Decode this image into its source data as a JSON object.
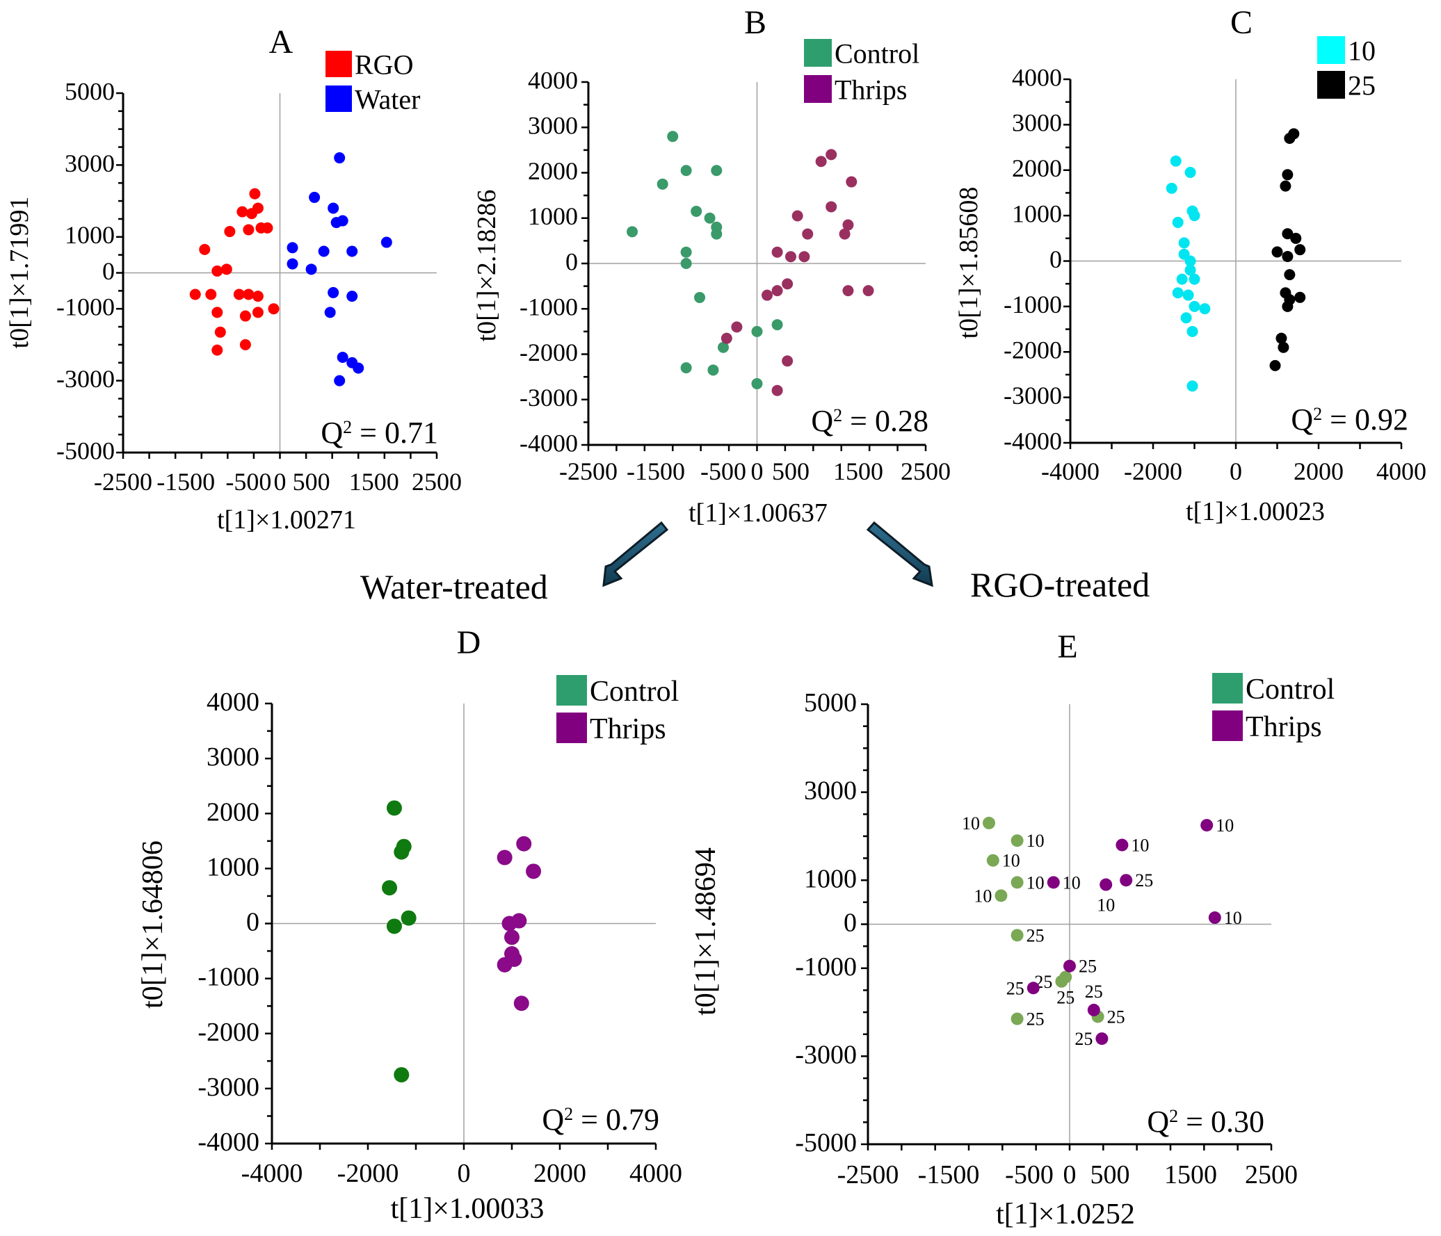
{
  "section_labels": {
    "water": "Water-treated",
    "rgo": "RGO-treated"
  },
  "chart_data": [
    {
      "id": "A",
      "type": "scatter",
      "title": "A",
      "xlabel": "t[1]×1.00271",
      "ylabel": "t0[1]×1.71991",
      "xlim": [
        -2500,
        2500
      ],
      "ylim": [
        -5000,
        5000
      ],
      "xticks": [
        -2500,
        -1500,
        -500,
        0,
        500,
        1500,
        2500
      ],
      "yticks": [
        -5000,
        -3000,
        -1000,
        0,
        1000,
        3000,
        5000
      ],
      "q2": "Q² = 0.71",
      "legend": [
        {
          "name": "RGO",
          "color": "#ff0000"
        },
        {
          "name": "Water",
          "color": "#0000ff"
        }
      ],
      "series": [
        {
          "name": "RGO",
          "color": "#ff0000",
          "points": [
            [
              -400,
              2200
            ],
            [
              -600,
              1700
            ],
            [
              -350,
              1800
            ],
            [
              -450,
              1650
            ],
            [
              -300,
              1250
            ],
            [
              -200,
              1250
            ],
            [
              -800,
              1150
            ],
            [
              -500,
              1200
            ],
            [
              -1200,
              650
            ],
            [
              -1000,
              50
            ],
            [
              -850,
              100
            ],
            [
              -1350,
              -600
            ],
            [
              -1100,
              -600
            ],
            [
              -650,
              -600
            ],
            [
              -500,
              -600
            ],
            [
              -350,
              -650
            ],
            [
              -1000,
              -1100
            ],
            [
              -550,
              -1200
            ],
            [
              -350,
              -1100
            ],
            [
              -100,
              -1000
            ],
            [
              -950,
              -1650
            ],
            [
              -550,
              -2000
            ],
            [
              -1000,
              -2150
            ]
          ]
        },
        {
          "name": "Water",
          "color": "#0000ff",
          "points": [
            [
              950,
              3200
            ],
            [
              550,
              2100
            ],
            [
              850,
              1800
            ],
            [
              900,
              1400
            ],
            [
              1000,
              1450
            ],
            [
              1700,
              850
            ],
            [
              200,
              700
            ],
            [
              700,
              600
            ],
            [
              1150,
              600
            ],
            [
              200,
              250
            ],
            [
              500,
              100
            ],
            [
              850,
              -550
            ],
            [
              1150,
              -650
            ],
            [
              800,
              -1100
            ],
            [
              1000,
              -2350
            ],
            [
              1150,
              -2500
            ],
            [
              1250,
              -2650
            ],
            [
              950,
              -3000
            ]
          ]
        }
      ]
    },
    {
      "id": "B",
      "type": "scatter",
      "title": "B",
      "xlabel": "t[1]×1.00637",
      "ylabel": "t0[1]×2.18286",
      "xlim": [
        -2500,
        2500
      ],
      "ylim": [
        -4000,
        4000
      ],
      "xticks": [
        -2500,
        -1500,
        -500,
        0,
        500,
        1500,
        2500
      ],
      "yticks": [
        -4000,
        -3000,
        -2000,
        -1000,
        0,
        1000,
        2000,
        3000,
        4000
      ],
      "q2": "Q² = 0.28",
      "legend": [
        {
          "name": "Control",
          "color": "#2e9e6e"
        },
        {
          "name": "Thrips",
          "color": "#800080"
        }
      ],
      "series": [
        {
          "name": "Control",
          "color": "#3a9a6a",
          "points": [
            [
              -1250,
              2800
            ],
            [
              -1050,
              2050
            ],
            [
              -600,
              2050
            ],
            [
              -1400,
              1750
            ],
            [
              -900,
              1150
            ],
            [
              -700,
              1000
            ],
            [
              -600,
              800
            ],
            [
              -600,
              650
            ],
            [
              -1850,
              700
            ],
            [
              -1050,
              250
            ],
            [
              -1050,
              0
            ],
            [
              -850,
              -750
            ],
            [
              -500,
              -1850
            ],
            [
              0,
              -1500
            ],
            [
              300,
              -1350
            ],
            [
              -1050,
              -2300
            ],
            [
              -650,
              -2350
            ],
            [
              0,
              -2650
            ]
          ]
        },
        {
          "name": "Thrips",
          "color": "#9a3060",
          "points": [
            [
              1100,
              2400
            ],
            [
              950,
              2250
            ],
            [
              1400,
              1800
            ],
            [
              1100,
              1250
            ],
            [
              600,
              1050
            ],
            [
              750,
              650
            ],
            [
              1350,
              850
            ],
            [
              1300,
              650
            ],
            [
              300,
              250
            ],
            [
              500,
              150
            ],
            [
              700,
              150
            ],
            [
              450,
              -450
            ],
            [
              300,
              -600
            ],
            [
              150,
              -700
            ],
            [
              1350,
              -600
            ],
            [
              1650,
              -600
            ],
            [
              -300,
              -1400
            ],
            [
              -450,
              -1650
            ],
            [
              450,
              -2150
            ],
            [
              300,
              -2800
            ]
          ]
        }
      ]
    },
    {
      "id": "C",
      "type": "scatter",
      "title": "C",
      "xlabel": "t[1]×1.00023",
      "ylabel": "t0[1]×1.85608",
      "xlim": [
        -4000,
        4000
      ],
      "ylim": [
        -4000,
        4000
      ],
      "xticks": [
        -4000,
        -2000,
        0,
        2000,
        4000
      ],
      "yticks": [
        -4000,
        -3000,
        -2000,
        -1000,
        0,
        1000,
        2000,
        3000,
        4000
      ],
      "q2": "Q² = 0.92",
      "legend": [
        {
          "name": "10",
          "color": "#00ffff"
        },
        {
          "name": "25",
          "color": "#000000"
        }
      ],
      "series": [
        {
          "name": "10",
          "color": "#00e5f0",
          "points": [
            [
              -1450,
              2200
            ],
            [
              -1100,
              1950
            ],
            [
              -1550,
              1600
            ],
            [
              -1050,
              1100
            ],
            [
              -1000,
              1000
            ],
            [
              -1400,
              850
            ],
            [
              -1250,
              400
            ],
            [
              -1250,
              150
            ],
            [
              -1100,
              0
            ],
            [
              -1100,
              -200
            ],
            [
              -1300,
              -400
            ],
            [
              -1000,
              -400
            ],
            [
              -1400,
              -700
            ],
            [
              -1150,
              -750
            ],
            [
              -1000,
              -1000
            ],
            [
              -750,
              -1050
            ],
            [
              -1200,
              -1250
            ],
            [
              -1050,
              -1550
            ],
            [
              -1050,
              -2750
            ]
          ]
        },
        {
          "name": "25",
          "color": "#000000",
          "points": [
            [
              1400,
              2800
            ],
            [
              1300,
              2700
            ],
            [
              1250,
              1900
            ],
            [
              1200,
              1650
            ],
            [
              1250,
              600
            ],
            [
              1450,
              500
            ],
            [
              1000,
              200
            ],
            [
              1550,
              250
            ],
            [
              1250,
              100
            ],
            [
              1300,
              -300
            ],
            [
              1200,
              -700
            ],
            [
              1550,
              -800
            ],
            [
              1300,
              -850
            ],
            [
              1250,
              -1000
            ],
            [
              1100,
              -1700
            ],
            [
              1150,
              -1900
            ],
            [
              950,
              -2300
            ]
          ]
        }
      ]
    },
    {
      "id": "D",
      "type": "scatter",
      "title": "D",
      "xlabel": "t[1]×1.00033",
      "ylabel": "t0[1]×1.64806",
      "xlim": [
        -4000,
        4000
      ],
      "ylim": [
        -4000,
        4000
      ],
      "xticks": [
        -4000,
        -2000,
        0,
        2000,
        4000
      ],
      "yticks": [
        -4000,
        -3000,
        -2000,
        -1000,
        0,
        1000,
        2000,
        3000,
        4000
      ],
      "q2": "Q² = 0.79",
      "legend": [
        {
          "name": "Control",
          "color": "#2e9e6e"
        },
        {
          "name": "Thrips",
          "color": "#800080"
        }
      ],
      "series": [
        {
          "name": "Control",
          "color": "#0f7a0f",
          "points": [
            [
              -1450,
              2100
            ],
            [
              -1250,
              1400
            ],
            [
              -1300,
              1300
            ],
            [
              -1550,
              650
            ],
            [
              -1150,
              100
            ],
            [
              -1450,
              -50
            ],
            [
              -1300,
              -2750
            ]
          ]
        },
        {
          "name": "Thrips",
          "color": "#8a0a8a",
          "points": [
            [
              1250,
              1450
            ],
            [
              850,
              1200
            ],
            [
              1450,
              950
            ],
            [
              950,
              0
            ],
            [
              1150,
              50
            ],
            [
              1000,
              -250
            ],
            [
              1000,
              -550
            ],
            [
              1050,
              -650
            ],
            [
              850,
              -750
            ],
            [
              1200,
              -1450
            ]
          ]
        }
      ]
    },
    {
      "id": "E",
      "type": "scatter",
      "title": "E",
      "xlabel": "t[1]×1.0252",
      "ylabel": "t0[1]×1.48694",
      "xlim": [
        -2500,
        2500
      ],
      "ylim": [
        -5000,
        5000
      ],
      "xticks": [
        -2500,
        -1500,
        -500,
        0,
        500,
        1500,
        2500
      ],
      "yticks": [
        -5000,
        -3000,
        -1000,
        0,
        1000,
        3000,
        5000
      ],
      "q2": "Q² = 0.30",
      "legend": [
        {
          "name": "Control",
          "color": "#2e9e6e"
        },
        {
          "name": "Thrips",
          "color": "#800080"
        }
      ],
      "series": [
        {
          "name": "Control",
          "color": "#7aa855",
          "points": [
            {
              "x": -1000,
              "y": 2300,
              "label": "10",
              "side": "left"
            },
            {
              "x": -650,
              "y": 1900,
              "label": "10",
              "side": "right"
            },
            {
              "x": -950,
              "y": 1450,
              "label": "10",
              "side": "right"
            },
            {
              "x": -650,
              "y": 950,
              "label": "10",
              "side": "right"
            },
            {
              "x": -850,
              "y": 650,
              "label": "10",
              "side": "left"
            },
            {
              "x": -650,
              "y": -250,
              "label": "25",
              "side": "right"
            },
            {
              "x": -100,
              "y": -1300,
              "label": "25",
              "side": "left"
            },
            {
              "x": -50,
              "y": -1200,
              "label": "25",
              "side": "below"
            },
            {
              "x": -650,
              "y": -2150,
              "label": "25",
              "side": "right"
            },
            {
              "x": 350,
              "y": -2100,
              "label": "25",
              "side": "right"
            }
          ]
        },
        {
          "name": "Thrips",
          "color": "#800080",
          "points": [
            {
              "x": 1700,
              "y": 2250,
              "label": "10",
              "side": "right"
            },
            {
              "x": 650,
              "y": 1800,
              "label": "10",
              "side": "right"
            },
            {
              "x": -200,
              "y": 950,
              "label": "10",
              "side": "right"
            },
            {
              "x": 700,
              "y": 1000,
              "label": "25",
              "side": "right"
            },
            {
              "x": 450,
              "y": 900,
              "label": "10",
              "side": "below"
            },
            {
              "x": 1800,
              "y": 150,
              "label": "10",
              "side": "right"
            },
            {
              "x": 0,
              "y": -950,
              "label": "25",
              "side": "right"
            },
            {
              "x": -450,
              "y": -1450,
              "label": "25",
              "side": "left"
            },
            {
              "x": 300,
              "y": -1950,
              "label": "25",
              "side": "above"
            },
            {
              "x": 400,
              "y": -2600,
              "label": "25",
              "side": "left"
            }
          ]
        }
      ]
    }
  ]
}
